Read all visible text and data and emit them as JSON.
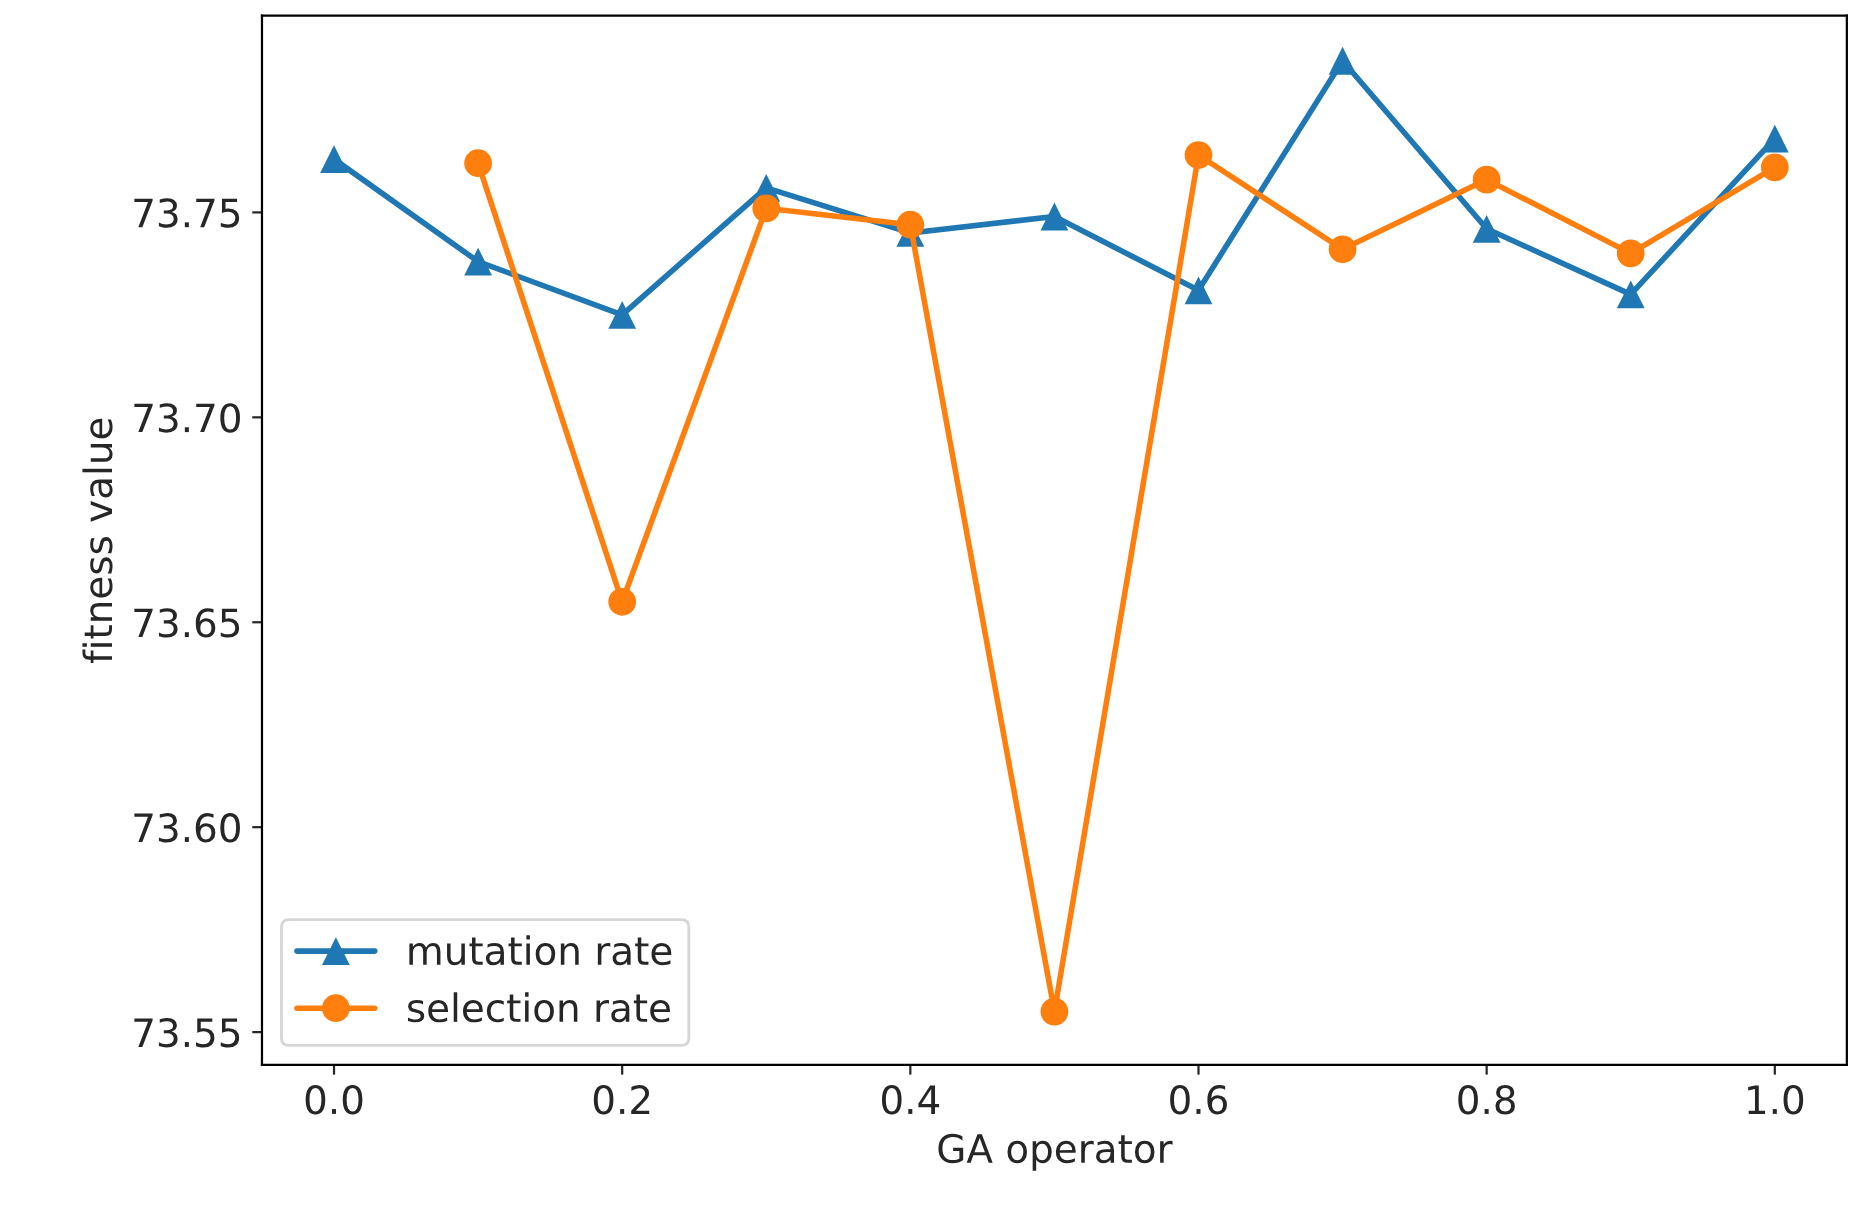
{
  "chart_data": {
    "type": "line",
    "xlabel": "GA operator",
    "ylabel": "fitness value",
    "series": [
      {
        "name": "mutation rate",
        "color": "#1f77b4",
        "marker": "triangle",
        "x": [
          0.0,
          0.1,
          0.2,
          0.3,
          0.4,
          0.5,
          0.6,
          0.7,
          0.8,
          0.9,
          1.0
        ],
        "values": [
          73.763,
          73.738,
          73.725,
          73.756,
          73.745,
          73.749,
          73.731,
          73.787,
          73.746,
          73.73,
          73.768
        ]
      },
      {
        "name": "selection rate",
        "color": "#ff7f0e",
        "marker": "circle",
        "x": [
          0.1,
          0.2,
          0.3,
          0.4,
          0.5,
          0.6,
          0.7,
          0.8,
          0.9,
          1.0
        ],
        "values": [
          73.762,
          73.655,
          73.751,
          73.747,
          73.555,
          73.764,
          73.741,
          73.758,
          73.74,
          73.761
        ]
      }
    ],
    "xlim": [
      -0.05,
      1.05
    ],
    "xticks": [
      {
        "value": 0.0,
        "label": "0.0"
      },
      0.2,
      0.4,
      0.6,
      0.8,
      {
        "value": 1.0,
        "label": "1.0"
      }
    ],
    "ylim": [
      73.542,
      73.798
    ],
    "yticks": [
      {
        "value": 73.55,
        "label": "73.55"
      },
      {
        "value": 73.6,
        "label": "73.60"
      },
      {
        "value": 73.65,
        "label": "73.65"
      },
      {
        "value": 73.7,
        "label": "73.70"
      },
      {
        "value": 73.75,
        "label": "73.75"
      }
    ],
    "legend": "bottom left",
    "grid": false,
    "line_style": "solid"
  }
}
